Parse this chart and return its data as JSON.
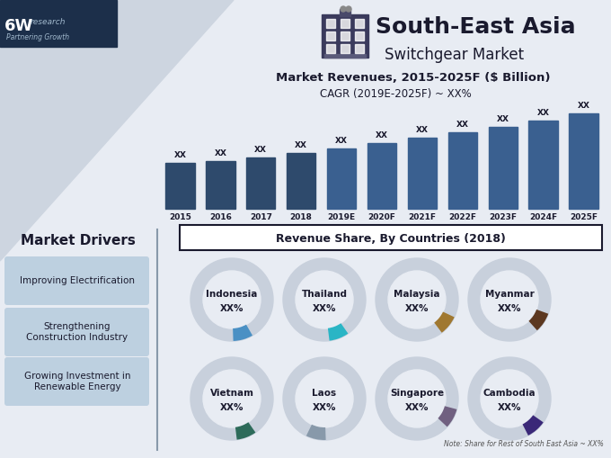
{
  "title_main": "South-East Asia",
  "title_sub": "Switchgear Market",
  "chart_title": "Market Revenues, 2015-2025F ($ Billion)",
  "cagr_text": "CAGR (2019E-2025F) ~ XX%",
  "bar_years": [
    "2015",
    "2016",
    "2017",
    "2018",
    "2019E",
    "2020F",
    "2021F",
    "2022F",
    "2023F",
    "2024F",
    "2025F"
  ],
  "bar_heights": [
    1.0,
    1.05,
    1.12,
    1.22,
    1.33,
    1.44,
    1.55,
    1.67,
    1.8,
    1.93,
    2.08
  ],
  "bar_color_historical": "#2e4a6c",
  "bar_color_forecast": "#3a6090",
  "bg_color": "#dce3ec",
  "bg_color2": "#e8ecf3",
  "header_bg": "#1c2f4a",
  "diag_color": "#cdd5e0",
  "market_drivers_title": "Market Drivers",
  "drivers": [
    "Improving Electrification",
    "Strengthening\nConstruction Industry",
    "Growing Investment in\nRenewable Energy"
  ],
  "driver_box_color": "#bdd0e0",
  "revenue_share_title": "Revenue Share, By Countries (2018)",
  "countries": [
    "Indonesia",
    "Thailand",
    "Malaysia",
    "Myanmar",
    "Vietnam",
    "Laos",
    "Singapore",
    "Cambodia"
  ],
  "country_colors": [
    "#4a90c4",
    "#2ab5c5",
    "#a07830",
    "#5c3820",
    "#2d6b5a",
    "#8899aa",
    "#706080",
    "#3a2878"
  ],
  "donut_bg_color": "#c8d0dc",
  "donut_inner_color": "#e8ecf3",
  "wedge_start_angles": [
    60,
    55,
    25,
    20,
    55,
    88,
    15,
    35
  ],
  "wedge_size": 28,
  "note_text": "Note: Share for Rest of South East Asia ~ XX%"
}
